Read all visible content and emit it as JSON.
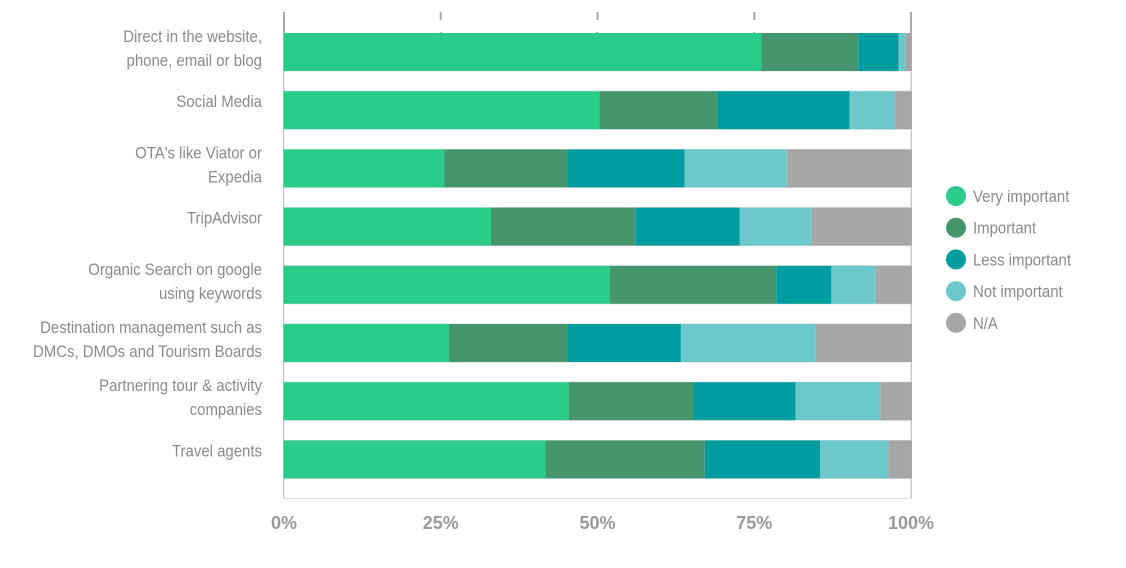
{
  "chart_data": {
    "type": "bar",
    "orientation": "horizontal",
    "stacked": "percent",
    "categories": [
      [
        "Direct in the website,",
        "phone, email or blog"
      ],
      [
        "Social Media"
      ],
      [
        "OTA's like Viator or",
        "Expedia"
      ],
      [
        "TripAdvisor"
      ],
      [
        "Organic Search on google",
        "using keywords"
      ],
      [
        "Destination management such as",
        "DMCs, DMOs and Tourism Boards"
      ],
      [
        "Partnering tour & activity",
        "companies"
      ],
      [
        "Travel agents"
      ]
    ],
    "series": [
      {
        "name": "Very important",
        "color": "#29cc88",
        "values": [
          76.1,
          50.3,
          25.6,
          33.0,
          52.0,
          26.3,
          45.4,
          41.7
        ]
      },
      {
        "name": "Important",
        "color": "#45966d",
        "values": [
          15.5,
          18.8,
          19.7,
          23.1,
          26.5,
          19.0,
          19.9,
          25.4
        ]
      },
      {
        "name": "Less important",
        "color": "#009ca0",
        "values": [
          6.4,
          21.1,
          18.6,
          16.6,
          8.8,
          18.0,
          16.3,
          18.4
        ]
      },
      {
        "name": "Not important",
        "color": "#6dc8cc",
        "values": [
          1.2,
          7.2,
          16.3,
          11.5,
          7.0,
          21.5,
          13.5,
          10.9
        ]
      },
      {
        "name": "N/A",
        "color": "#a6a6a6",
        "values": [
          0.8,
          2.6,
          19.8,
          15.8,
          5.7,
          15.2,
          4.9,
          3.6
        ]
      }
    ],
    "xticks": [
      "0%",
      "25%",
      "50%",
      "75%",
      "100%"
    ],
    "xlim": [
      0,
      100
    ],
    "grid": "dashed vertical",
    "legend": "right",
    "title": "",
    "xlabel": "",
    "ylabel": ""
  }
}
